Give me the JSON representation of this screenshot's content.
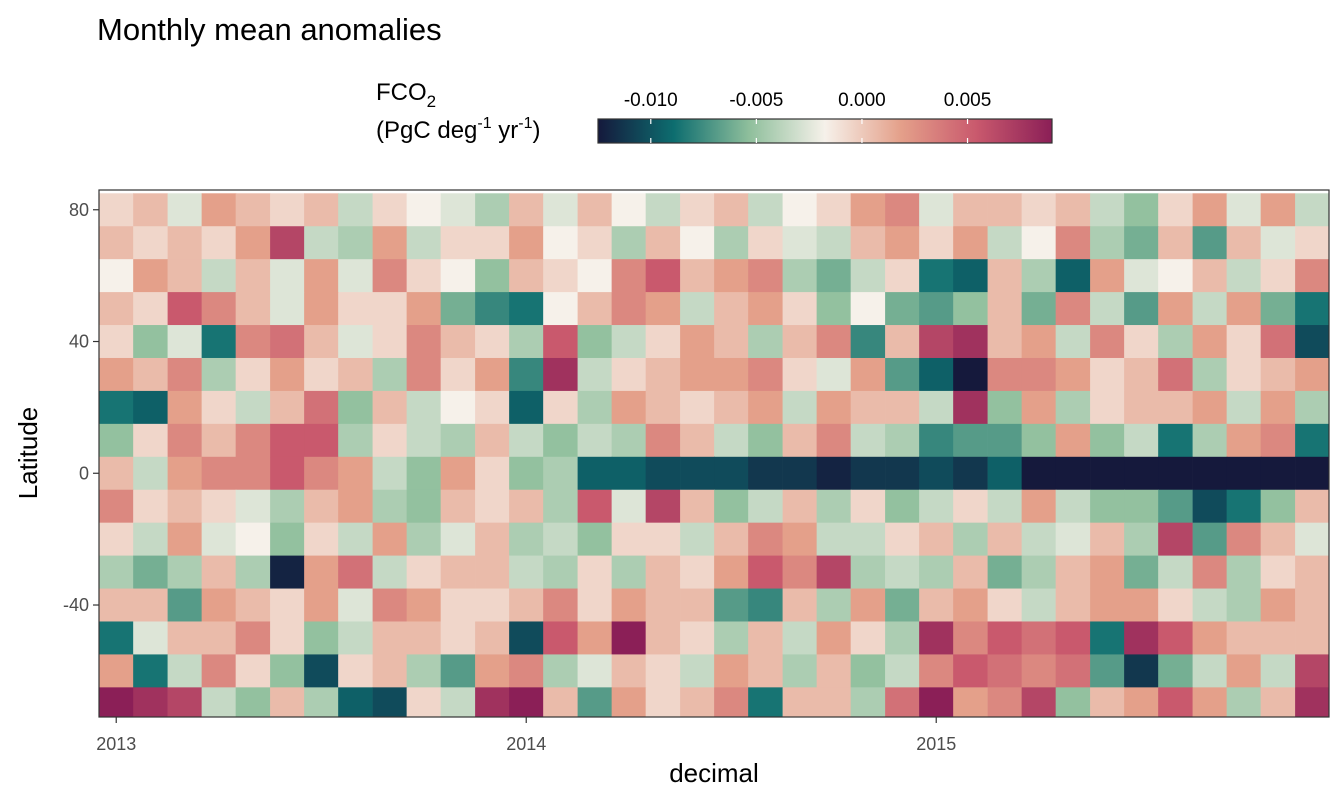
{
  "chart_data": {
    "type": "heatmap",
    "title": "Monthly mean anomalies",
    "xlabel": "decimal",
    "ylabel": "Latitude",
    "legend": {
      "title_line1_main": "FCO",
      "title_line1_sub": "2",
      "title_line2_a": "(PgC deg",
      "title_line2_sup1": "-1",
      "title_line2_b": " yr",
      "title_line2_sup2": "-1",
      "title_line2_c": ")",
      "placement": "top",
      "ticks": [
        {
          "value": -0.01,
          "label": "-0.010"
        },
        {
          "value": -0.005,
          "label": "-0.005"
        },
        {
          "value": 0.0,
          "label": "0.000"
        },
        {
          "value": 0.005,
          "label": "0.005"
        }
      ],
      "range": [
        -0.0125,
        0.009
      ]
    },
    "colorscale": [
      "#15193c",
      "#0d6d6f",
      "#8fbf9c",
      "#f6f1ea",
      "#e4a08a",
      "#c9596d",
      "#8b1f57"
    ],
    "x_ticks": [
      {
        "value": 2013,
        "label": "2013"
      },
      {
        "value": 2014,
        "label": "2014"
      },
      {
        "value": 2015,
        "label": "2015"
      }
    ],
    "y_ticks": [
      {
        "value": 80,
        "label": "80"
      },
      {
        "value": 40,
        "label": "40"
      },
      {
        "value": 0,
        "label": "0"
      },
      {
        "value": -40,
        "label": "-40"
      }
    ],
    "xlim": [
      2012.958,
      2015.958
    ],
    "ylim": [
      -74,
      86
    ],
    "grid": false,
    "months": [
      "2013-01",
      "2013-02",
      "2013-03",
      "2013-04",
      "2013-05",
      "2013-06",
      "2013-07",
      "2013-08",
      "2013-09",
      "2013-10",
      "2013-11",
      "2013-12",
      "2014-01",
      "2014-02",
      "2014-03",
      "2014-04",
      "2014-05",
      "2014-06",
      "2014-07",
      "2014-08",
      "2014-09",
      "2014-10",
      "2014-11",
      "2014-12",
      "2015-01",
      "2015-02",
      "2015-03",
      "2015-04",
      "2015-05",
      "2015-06",
      "2015-07",
      "2015-08",
      "2015-09",
      "2015-10",
      "2015-11",
      "2015-12"
    ],
    "month_values": [
      2013.0,
      2013.083,
      2013.167,
      2013.25,
      2013.333,
      2013.417,
      2013.5,
      2013.583,
      2013.667,
      2013.75,
      2013.833,
      2013.917,
      2014.0,
      2014.083,
      2014.167,
      2014.25,
      2014.333,
      2014.417,
      2014.5,
      2014.583,
      2014.667,
      2014.75,
      2014.833,
      2014.917,
      2015.0,
      2015.083,
      2015.167,
      2015.25,
      2015.333,
      2015.417,
      2015.5,
      2015.583,
      2015.667,
      2015.75,
      2015.833,
      2015.917
    ],
    "latitudes": [
      80,
      70,
      60,
      50,
      40,
      30,
      20,
      10,
      0,
      -10,
      -20,
      -30,
      -40,
      -50,
      -60,
      -70
    ],
    "lat_step": 10,
    "values": [
      [
        0.001,
        0.002,
        -0.001,
        0.003,
        0.002,
        0.001,
        0.002,
        -0.002,
        0.001,
        0.0,
        -0.001,
        -0.003,
        0.002,
        -0.001,
        0.002,
        0.0,
        -0.002,
        0.001,
        0.002,
        -0.002,
        0.0,
        0.001,
        0.003,
        0.004,
        -0.001,
        0.002,
        0.002,
        0.001,
        0.002,
        -0.002,
        -0.004,
        0.001,
        0.003,
        -0.001,
        0.003,
        -0.002
      ],
      [
        0.002,
        0.001,
        0.002,
        0.001,
        0.003,
        0.007,
        -0.002,
        -0.003,
        0.003,
        -0.002,
        0.001,
        0.001,
        0.003,
        0.0,
        0.001,
        -0.003,
        0.002,
        0.0,
        -0.003,
        0.001,
        -0.001,
        -0.002,
        0.002,
        0.003,
        0.001,
        0.003,
        -0.002,
        0.0,
        0.004,
        -0.003,
        -0.005,
        0.002,
        -0.006,
        0.002,
        -0.001,
        0.001
      ],
      [
        0.0,
        0.003,
        0.002,
        -0.002,
        0.002,
        -0.001,
        0.003,
        -0.001,
        0.004,
        0.001,
        0.0,
        -0.004,
        0.002,
        0.001,
        0.0,
        0.004,
        0.006,
        0.002,
        0.003,
        0.004,
        -0.003,
        -0.005,
        -0.002,
        0.001,
        -0.008,
        -0.009,
        0.002,
        -0.003,
        -0.009,
        0.003,
        -0.001,
        0.0,
        0.002,
        -0.002,
        0.001,
        0.004
      ],
      [
        0.002,
        0.001,
        0.006,
        0.004,
        0.002,
        -0.001,
        0.003,
        0.001,
        0.001,
        0.003,
        -0.005,
        -0.007,
        -0.008,
        0.0,
        0.002,
        0.004,
        0.003,
        -0.002,
        0.002,
        0.003,
        0.001,
        -0.004,
        0.0,
        -0.005,
        -0.006,
        -0.004,
        0.002,
        -0.005,
        0.004,
        -0.002,
        -0.006,
        0.003,
        -0.002,
        0.003,
        -0.005,
        -0.008
      ],
      [
        0.001,
        -0.004,
        -0.001,
        -0.008,
        0.004,
        0.005,
        0.002,
        -0.001,
        0.001,
        0.004,
        0.002,
        0.001,
        -0.003,
        0.006,
        -0.004,
        -0.002,
        0.001,
        0.003,
        0.002,
        -0.003,
        0.002,
        0.004,
        -0.007,
        0.002,
        0.007,
        0.008,
        0.002,
        0.003,
        -0.002,
        0.004,
        0.001,
        -0.003,
        0.003,
        0.001,
        0.005,
        -0.01
      ],
      [
        0.003,
        0.002,
        0.004,
        -0.003,
        0.001,
        0.003,
        0.001,
        0.002,
        -0.003,
        0.004,
        0.001,
        0.003,
        -0.007,
        0.008,
        -0.002,
        0.001,
        0.002,
        0.003,
        0.003,
        0.004,
        0.001,
        -0.001,
        0.003,
        -0.006,
        -0.009,
        -0.013,
        0.004,
        0.004,
        0.003,
        0.001,
        0.002,
        0.005,
        -0.003,
        0.001,
        0.002,
        0.003
      ],
      [
        -0.008,
        -0.009,
        0.003,
        0.001,
        -0.002,
        0.002,
        0.005,
        -0.004,
        0.002,
        -0.002,
        0.0,
        0.001,
        -0.009,
        0.001,
        -0.003,
        0.003,
        0.002,
        0.001,
        0.002,
        0.003,
        -0.002,
        0.003,
        0.002,
        0.002,
        -0.002,
        0.008,
        -0.004,
        0.003,
        -0.003,
        0.001,
        0.002,
        0.002,
        0.003,
        -0.002,
        0.003,
        -0.003
      ],
      [
        -0.004,
        0.001,
        0.004,
        0.002,
        0.004,
        0.006,
        0.006,
        -0.003,
        0.001,
        -0.002,
        -0.003,
        0.002,
        -0.002,
        -0.004,
        -0.002,
        -0.003,
        0.004,
        0.002,
        -0.002,
        -0.004,
        0.002,
        0.004,
        -0.002,
        -0.003,
        -0.007,
        -0.006,
        -0.006,
        -0.004,
        0.003,
        -0.004,
        -0.002,
        -0.008,
        -0.003,
        0.003,
        0.004,
        -0.008
      ],
      [
        0.002,
        -0.002,
        0.003,
        0.004,
        0.004,
        0.006,
        0.004,
        0.003,
        -0.002,
        -0.004,
        0.003,
        0.001,
        -0.004,
        -0.003,
        -0.009,
        -0.009,
        -0.01,
        -0.01,
        -0.01,
        -0.011,
        -0.011,
        -0.012,
        -0.011,
        -0.011,
        -0.01,
        -0.011,
        -0.009,
        -0.013,
        -0.013,
        -0.013,
        -0.014,
        -0.014,
        -0.014,
        -0.014,
        -0.014,
        -0.014
      ],
      [
        0.004,
        0.001,
        0.002,
        0.001,
        -0.001,
        -0.003,
        0.002,
        0.003,
        -0.003,
        -0.004,
        0.002,
        0.001,
        0.002,
        -0.003,
        0.006,
        -0.001,
        0.007,
        0.002,
        -0.004,
        -0.002,
        0.002,
        -0.003,
        0.001,
        -0.004,
        -0.002,
        0.001,
        -0.002,
        0.003,
        -0.002,
        -0.004,
        -0.004,
        -0.006,
        -0.01,
        -0.008,
        -0.004,
        0.002
      ],
      [
        0.001,
        -0.002,
        0.003,
        -0.001,
        0.0,
        -0.004,
        0.001,
        -0.002,
        0.003,
        -0.003,
        -0.001,
        0.002,
        -0.003,
        -0.002,
        -0.004,
        0.001,
        0.001,
        -0.002,
        0.002,
        0.004,
        0.003,
        -0.002,
        -0.002,
        0.001,
        0.002,
        -0.003,
        0.002,
        -0.002,
        -0.001,
        0.002,
        -0.003,
        0.007,
        -0.006,
        0.004,
        0.002,
        -0.001
      ],
      [
        -0.003,
        -0.005,
        -0.003,
        0.002,
        -0.003,
        -0.012,
        0.003,
        0.005,
        -0.002,
        0.001,
        0.002,
        0.002,
        -0.002,
        -0.003,
        0.001,
        -0.003,
        0.002,
        0.001,
        0.003,
        0.006,
        0.004,
        0.007,
        -0.003,
        -0.002,
        -0.003,
        0.002,
        -0.005,
        -0.003,
        0.002,
        0.003,
        -0.005,
        -0.002,
        0.004,
        -0.003,
        0.001,
        0.002
      ],
      [
        0.002,
        0.002,
        -0.006,
        0.003,
        0.002,
        0.001,
        0.003,
        -0.001,
        0.004,
        0.003,
        0.001,
        0.001,
        0.002,
        0.004,
        0.001,
        0.003,
        0.002,
        0.002,
        -0.006,
        -0.007,
        0.002,
        -0.003,
        0.003,
        -0.005,
        0.002,
        0.003,
        0.001,
        -0.002,
        0.002,
        0.003,
        0.003,
        0.001,
        -0.002,
        -0.003,
        0.003,
        0.002
      ],
      [
        -0.008,
        -0.001,
        0.002,
        0.002,
        0.004,
        0.001,
        -0.004,
        -0.002,
        0.002,
        0.002,
        0.001,
        0.002,
        -0.01,
        0.006,
        0.003,
        0.009,
        0.002,
        0.001,
        -0.003,
        0.002,
        -0.002,
        0.003,
        0.001,
        -0.003,
        0.008,
        0.004,
        0.006,
        0.005,
        0.006,
        -0.008,
        0.008,
        0.006,
        0.003,
        0.002,
        0.002,
        0.002
      ],
      [
        0.003,
        -0.008,
        -0.002,
        0.004,
        0.001,
        -0.004,
        -0.01,
        0.001,
        0.002,
        -0.003,
        -0.006,
        0.003,
        0.004,
        -0.003,
        -0.001,
        0.002,
        0.001,
        -0.002,
        0.003,
        0.002,
        -0.003,
        0.002,
        -0.004,
        -0.002,
        0.004,
        0.006,
        0.005,
        0.004,
        0.005,
        -0.006,
        -0.011,
        -0.005,
        -0.002,
        0.003,
        -0.002,
        0.007
      ],
      [
        0.009,
        0.008,
        0.007,
        -0.002,
        -0.004,
        0.002,
        -0.003,
        -0.009,
        -0.01,
        0.001,
        -0.002,
        0.008,
        0.009,
        0.002,
        -0.006,
        0.003,
        0.001,
        0.002,
        0.004,
        -0.008,
        0.002,
        0.002,
        -0.003,
        0.005,
        0.009,
        0.003,
        0.004,
        0.007,
        -0.004,
        0.002,
        0.003,
        0.006,
        0.003,
        -0.003,
        0.002,
        0.008
      ]
    ]
  }
}
